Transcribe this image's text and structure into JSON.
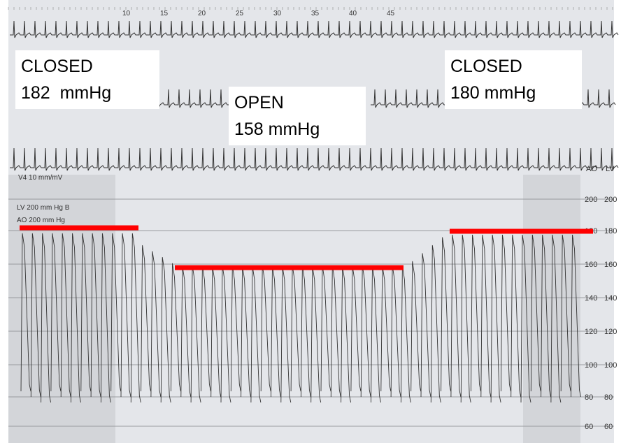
{
  "annotations": [
    {
      "state": "CLOSED",
      "pressure": "182  mmHg"
    },
    {
      "state": "OPEN",
      "pressure": "158 mmHg"
    },
    {
      "state": "CLOSED",
      "pressure": "180 mmHg"
    }
  ],
  "trace_labels": {
    "ecg": "V4  10 mm/mV",
    "lv": "LV 200 mm Hg  B",
    "ao": "AO  200 mm Hg",
    "ao_col": "AO",
    "lv_col": "LV"
  },
  "scale": {
    "ao": [
      "200",
      "180",
      "160",
      "140",
      "120",
      "100",
      "80",
      "60"
    ],
    "lv": [
      "200",
      "180",
      "160",
      "140",
      "120",
      "100",
      "80",
      "60"
    ]
  },
  "time_ticks": [
    "10",
    "15",
    "20",
    "25",
    "30",
    "35",
    "40",
    "45"
  ]
}
